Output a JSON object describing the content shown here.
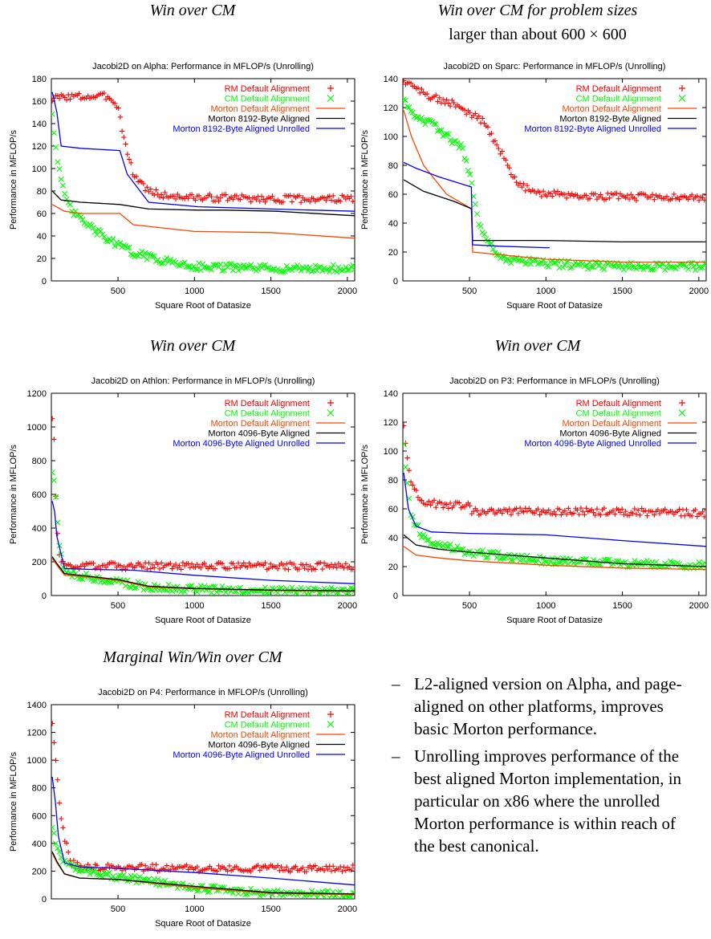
{
  "captions": [
    {
      "text": "Win over CM"
    },
    {
      "text": "Win over CM for problem sizes",
      "sub": "larger than about 600 × 600"
    },
    {
      "text": "Win over CM"
    },
    {
      "text": "Win over CM"
    },
    {
      "text": "Marginal Win/Win over CM"
    }
  ],
  "notes": [
    {
      "dash": "–",
      "text": "L2-aligned version on Alpha, and page-aligned on other platforms, improves basic Morton performance."
    },
    {
      "dash": "–",
      "text": "Unrolling improves performance of the best aligned Morton implementation, in particular on x86 where the unrolled Morton performance is within reach of the best canonical."
    }
  ],
  "colors": {
    "rm": "#ff0000",
    "cm": "#00ff00",
    "morton": "#ff4500",
    "aligned": "#000000",
    "unrolled": "#0000ff"
  },
  "chart_data": [
    {
      "type": "line",
      "title": "Jacobi2D on Alpha: Performance in MFLOP/s (Unrolling)",
      "xlabel": "Square Root of Datasize",
      "ylabel": "Performance in MFLOP/s",
      "xlim": [
        64,
        2048
      ],
      "ylim": [
        0,
        180
      ],
      "xticks": [
        500,
        1000,
        1500,
        2000
      ],
      "yticks": [
        0,
        20,
        40,
        60,
        80,
        100,
        120,
        140,
        160,
        180
      ],
      "legend_position": "top-right",
      "series": [
        {
          "name": "RM Default Alignment",
          "style": "plus",
          "color": "#ff0000",
          "x": [
            70,
            150,
            250,
            350,
            450,
            500,
            550,
            600,
            700,
            800,
            1000,
            1200,
            1500,
            1800,
            2048
          ],
          "y": [
            162,
            164,
            164,
            164,
            164,
            155,
            120,
            95,
            80,
            76,
            74,
            74,
            73,
            73,
            73
          ]
        },
        {
          "name": "CM Default Alignment",
          "style": "cross",
          "color": "#00ff00",
          "x": [
            70,
            100,
            150,
            200,
            300,
            400,
            500,
            600,
            800,
            1000,
            1200,
            1500,
            1800,
            2048
          ],
          "y": [
            150,
            110,
            75,
            62,
            50,
            40,
            32,
            25,
            18,
            13,
            12,
            11,
            11,
            11
          ]
        },
        {
          "name": "Morton Default Alignment",
          "style": "line",
          "color": "#ff4500",
          "x": [
            70,
            150,
            256,
            512,
            600,
            1000,
            1024,
            1500,
            2048
          ],
          "y": [
            68,
            62,
            60,
            60,
            50,
            44,
            44,
            43,
            38
          ]
        },
        {
          "name": "Morton 8192-Byte Aligned",
          "style": "line",
          "color": "#000000",
          "x": [
            70,
            128,
            256,
            512,
            700,
            1024,
            1200,
            1536,
            2048
          ],
          "y": [
            80,
            72,
            70,
            68,
            64,
            63,
            63,
            62,
            58
          ]
        },
        {
          "name": "Morton 8192-Byte Aligned Unrolled",
          "style": "line",
          "color": "#0000ff",
          "x": [
            70,
            100,
            128,
            256,
            512,
            560,
            700,
            1024,
            1500,
            2048
          ],
          "y": [
            168,
            150,
            120,
            118,
            116,
            95,
            70,
            66,
            64,
            62
          ]
        }
      ]
    },
    {
      "type": "line",
      "title": "Jacobi2D on Sparc: Performance in MFLOP/s (Unrolling)",
      "xlabel": "Square Root of Datasize",
      "ylabel": "Performance in MFLOP/s",
      "xlim": [
        64,
        2048
      ],
      "ylim": [
        0,
        140
      ],
      "xticks": [
        500,
        1000,
        1500,
        2000
      ],
      "yticks": [
        0,
        20,
        40,
        60,
        80,
        100,
        120,
        140
      ],
      "legend_position": "top-right",
      "series": [
        {
          "name": "RM Default Alignment",
          "style": "plus",
          "color": "#ff0000",
          "x": [
            70,
            200,
            400,
            600,
            700,
            800,
            900,
            1000,
            1500,
            2048
          ],
          "y": [
            138,
            130,
            122,
            110,
            90,
            70,
            62,
            60,
            58,
            58
          ]
        },
        {
          "name": "CM Default Alignment",
          "style": "cross",
          "color": "#00ff00",
          "x": [
            70,
            150,
            300,
            450,
            512,
            560,
            700,
            1000,
            1500,
            2048
          ],
          "y": [
            125,
            115,
            105,
            92,
            70,
            40,
            15,
            12,
            10,
            10
          ]
        },
        {
          "name": "Morton Default Alignment",
          "style": "line",
          "color": "#ff4500",
          "x": [
            70,
            120,
            200,
            350,
            512,
            520,
            1000,
            1500,
            2048
          ],
          "y": [
            118,
            100,
            80,
            60,
            50,
            20,
            15,
            13,
            13
          ]
        },
        {
          "name": "Morton 8192-Byte Aligned",
          "style": "line",
          "color": "#000000",
          "x": [
            70,
            200,
            400,
            512,
            520,
            1000,
            1500,
            2048
          ],
          "y": [
            70,
            62,
            55,
            50,
            28,
            28,
            27,
            27
          ]
        },
        {
          "name": "Morton 8192-Byte Aligned Unrolled",
          "style": "line",
          "color": "#0000ff",
          "x": [
            70,
            150,
            300,
            512,
            520,
            700,
            1000,
            1024
          ],
          "y": [
            82,
            78,
            72,
            65,
            25,
            24,
            23,
            23
          ]
        }
      ]
    },
    {
      "type": "line",
      "title": "Jacobi2D on Athlon: Performance in MFLOP/s (Unrolling)",
      "xlabel": "Square Root of Datasize",
      "ylabel": "Performance in MFLOP/s",
      "xlim": [
        64,
        2048
      ],
      "ylim": [
        0,
        1200
      ],
      "xticks": [
        500,
        1000,
        1500,
        2000
      ],
      "yticks": [
        0,
        200,
        400,
        600,
        800,
        1000,
        1200
      ],
      "legend_position": "top-right",
      "series": [
        {
          "name": "RM Default Alignment",
          "style": "plus",
          "color": "#ff0000",
          "x": [
            70,
            80,
            90,
            100,
            120,
            150,
            200,
            500,
            1000,
            1500,
            2048
          ],
          "y": [
            1070,
            950,
            700,
            400,
            220,
            180,
            175,
            175,
            175,
            175,
            175
          ]
        },
        {
          "name": "CM Default Alignment",
          "style": "cross",
          "color": "#00ff00",
          "x": [
            70,
            80,
            100,
            120,
            150,
            200,
            300,
            500,
            700,
            1000,
            1500,
            2048
          ],
          "y": [
            750,
            700,
            500,
            250,
            160,
            130,
            110,
            80,
            50,
            40,
            30,
            25
          ]
        },
        {
          "name": "Morton Default Alignment",
          "style": "line",
          "color": "#ff4500",
          "x": [
            70,
            100,
            150,
            300,
            500,
            700,
            1000,
            1500,
            2048
          ],
          "y": [
            220,
            180,
            120,
            110,
            90,
            50,
            40,
            30,
            25
          ]
        },
        {
          "name": "Morton 4096-Byte Aligned",
          "style": "line",
          "color": "#000000",
          "x": [
            70,
            100,
            150,
            300,
            500,
            700,
            1000,
            1500,
            2048
          ],
          "y": [
            230,
            190,
            130,
            115,
            95,
            55,
            42,
            32,
            28
          ]
        },
        {
          "name": "Morton 4096-Byte Aligned Unrolled",
          "style": "line",
          "color": "#0000ff",
          "x": [
            70,
            85,
            100,
            150,
            300,
            600,
            1000,
            1500,
            2048
          ],
          "y": [
            560,
            500,
            350,
            160,
            155,
            150,
            120,
            90,
            70
          ]
        }
      ]
    },
    {
      "type": "line",
      "title": "Jacobi2D on P3: Performance in MFLOP/s (Unrolling)",
      "xlabel": "Square Root of Datasize",
      "ylabel": "Performance in MFLOP/s",
      "xlim": [
        64,
        2048
      ],
      "ylim": [
        0,
        140
      ],
      "xticks": [
        500,
        1000,
        1500,
        2000
      ],
      "yticks": [
        0,
        20,
        40,
        60,
        80,
        100,
        120,
        140
      ],
      "legend_position": "top-right",
      "series": [
        {
          "name": "RM Default Alignment",
          "style": "plus",
          "color": "#ff0000",
          "x": [
            70,
            90,
            120,
            200,
            300,
            500,
            520,
            1000,
            1500,
            2048
          ],
          "y": [
            118,
            95,
            75,
            65,
            63,
            62,
            58,
            58,
            58,
            57
          ]
        },
        {
          "name": "CM Default Alignment",
          "style": "cross",
          "color": "#00ff00",
          "x": [
            70,
            90,
            120,
            200,
            300,
            500,
            800,
            1000,
            1500,
            2048
          ],
          "y": [
            105,
            80,
            55,
            40,
            35,
            30,
            26,
            24,
            22,
            21
          ]
        },
        {
          "name": "Morton Default Alignment",
          "style": "line",
          "color": "#ff4500",
          "x": [
            70,
            150,
            300,
            500,
            1000,
            1500,
            2048
          ],
          "y": [
            34,
            28,
            26,
            24,
            21,
            19,
            18
          ]
        },
        {
          "name": "Morton 4096-Byte Aligned",
          "style": "line",
          "color": "#000000",
          "x": [
            70,
            150,
            300,
            500,
            1000,
            1500,
            2048
          ],
          "y": [
            42,
            35,
            32,
            30,
            26,
            22,
            20
          ]
        },
        {
          "name": "Morton 4096-Byte Aligned Unrolled",
          "style": "line",
          "color": "#0000ff",
          "x": [
            70,
            100,
            150,
            250,
            500,
            1000,
            1500,
            2048
          ],
          "y": [
            85,
            60,
            48,
            44,
            43,
            42,
            38,
            34
          ]
        }
      ]
    },
    {
      "type": "line",
      "title": "Jacobi2D on P4: Performance in MFLOP/s (Unrolling)",
      "xlabel": "Square Root of Datasize",
      "ylabel": "Performance in MFLOP/s",
      "xlim": [
        64,
        2048
      ],
      "ylim": [
        0,
        1400
      ],
      "xticks": [
        500,
        1000,
        1500,
        2000
      ],
      "yticks": [
        0,
        200,
        400,
        600,
        800,
        1000,
        1200,
        1400
      ],
      "legend_position": "top-right",
      "series": [
        {
          "name": "RM Default Alignment",
          "style": "plus",
          "color": "#ff0000",
          "x": [
            70,
            85,
            100,
            130,
            170,
            200,
            250,
            500,
            1000,
            1500,
            2048
          ],
          "y": [
            1250,
            1100,
            900,
            550,
            350,
            260,
            225,
            225,
            220,
            220,
            220
          ]
        },
        {
          "name": "CM Default Alignment",
          "style": "cross",
          "color": "#00ff00",
          "x": [
            70,
            100,
            130,
            170,
            250,
            500,
            800,
            1000,
            1500,
            2048
          ],
          "y": [
            500,
            380,
            300,
            250,
            210,
            160,
            110,
            80,
            40,
            30
          ]
        },
        {
          "name": "Morton Default Alignment",
          "style": "line",
          "color": "#ff4500",
          "x": [
            70,
            100,
            150,
            250,
            500,
            1000,
            1500,
            2048
          ],
          "y": [
            330,
            260,
            180,
            150,
            140,
            80,
            40,
            30
          ]
        },
        {
          "name": "Morton 4096-Byte Aligned",
          "style": "line",
          "color": "#000000",
          "x": [
            70,
            100,
            150,
            250,
            500,
            1000,
            1500,
            2048
          ],
          "y": [
            340,
            270,
            180,
            150,
            140,
            90,
            45,
            35
          ]
        },
        {
          "name": "Morton 4096-Byte Aligned Unrolled",
          "style": "line",
          "color": "#0000ff",
          "x": [
            70,
            90,
            110,
            150,
            250,
            500,
            1000,
            1500,
            2048
          ],
          "y": [
            880,
            700,
            450,
            260,
            230,
            220,
            190,
            150,
            100
          ]
        }
      ]
    }
  ]
}
